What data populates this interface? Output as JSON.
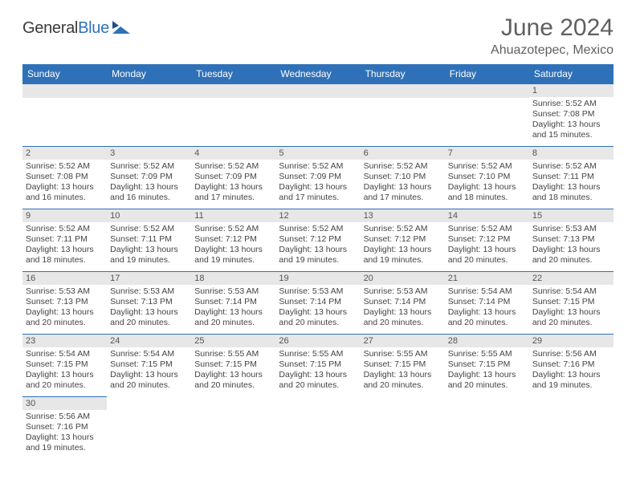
{
  "logo": {
    "word1": "General",
    "word2": "Blue"
  },
  "title": "June 2024",
  "location": "Ahuazotepec, Mexico",
  "colors": {
    "header_bg": "#2f71b8",
    "header_text": "#ffffff",
    "daynum_bg": "#e7e7e7",
    "border": "#2f71b8",
    "body_text": "#444444",
    "title_text": "#5f5f5f"
  },
  "day_headers": [
    "Sunday",
    "Monday",
    "Tuesday",
    "Wednesday",
    "Thursday",
    "Friday",
    "Saturday"
  ],
  "weeks": [
    [
      null,
      null,
      null,
      null,
      null,
      null,
      {
        "n": "1",
        "sr": "5:52 AM",
        "ss": "7:08 PM",
        "dl": "13 hours and 15 minutes."
      }
    ],
    [
      {
        "n": "2",
        "sr": "5:52 AM",
        "ss": "7:08 PM",
        "dl": "13 hours and 16 minutes."
      },
      {
        "n": "3",
        "sr": "5:52 AM",
        "ss": "7:09 PM",
        "dl": "13 hours and 16 minutes."
      },
      {
        "n": "4",
        "sr": "5:52 AM",
        "ss": "7:09 PM",
        "dl": "13 hours and 17 minutes."
      },
      {
        "n": "5",
        "sr": "5:52 AM",
        "ss": "7:09 PM",
        "dl": "13 hours and 17 minutes."
      },
      {
        "n": "6",
        "sr": "5:52 AM",
        "ss": "7:10 PM",
        "dl": "13 hours and 17 minutes."
      },
      {
        "n": "7",
        "sr": "5:52 AM",
        "ss": "7:10 PM",
        "dl": "13 hours and 18 minutes."
      },
      {
        "n": "8",
        "sr": "5:52 AM",
        "ss": "7:11 PM",
        "dl": "13 hours and 18 minutes."
      }
    ],
    [
      {
        "n": "9",
        "sr": "5:52 AM",
        "ss": "7:11 PM",
        "dl": "13 hours and 18 minutes."
      },
      {
        "n": "10",
        "sr": "5:52 AM",
        "ss": "7:11 PM",
        "dl": "13 hours and 19 minutes."
      },
      {
        "n": "11",
        "sr": "5:52 AM",
        "ss": "7:12 PM",
        "dl": "13 hours and 19 minutes."
      },
      {
        "n": "12",
        "sr": "5:52 AM",
        "ss": "7:12 PM",
        "dl": "13 hours and 19 minutes."
      },
      {
        "n": "13",
        "sr": "5:52 AM",
        "ss": "7:12 PM",
        "dl": "13 hours and 19 minutes."
      },
      {
        "n": "14",
        "sr": "5:52 AM",
        "ss": "7:12 PM",
        "dl": "13 hours and 20 minutes."
      },
      {
        "n": "15",
        "sr": "5:53 AM",
        "ss": "7:13 PM",
        "dl": "13 hours and 20 minutes."
      }
    ],
    [
      {
        "n": "16",
        "sr": "5:53 AM",
        "ss": "7:13 PM",
        "dl": "13 hours and 20 minutes."
      },
      {
        "n": "17",
        "sr": "5:53 AM",
        "ss": "7:13 PM",
        "dl": "13 hours and 20 minutes."
      },
      {
        "n": "18",
        "sr": "5:53 AM",
        "ss": "7:14 PM",
        "dl": "13 hours and 20 minutes."
      },
      {
        "n": "19",
        "sr": "5:53 AM",
        "ss": "7:14 PM",
        "dl": "13 hours and 20 minutes."
      },
      {
        "n": "20",
        "sr": "5:53 AM",
        "ss": "7:14 PM",
        "dl": "13 hours and 20 minutes."
      },
      {
        "n": "21",
        "sr": "5:54 AM",
        "ss": "7:14 PM",
        "dl": "13 hours and 20 minutes."
      },
      {
        "n": "22",
        "sr": "5:54 AM",
        "ss": "7:15 PM",
        "dl": "13 hours and 20 minutes."
      }
    ],
    [
      {
        "n": "23",
        "sr": "5:54 AM",
        "ss": "7:15 PM",
        "dl": "13 hours and 20 minutes."
      },
      {
        "n": "24",
        "sr": "5:54 AM",
        "ss": "7:15 PM",
        "dl": "13 hours and 20 minutes."
      },
      {
        "n": "25",
        "sr": "5:55 AM",
        "ss": "7:15 PM",
        "dl": "13 hours and 20 minutes."
      },
      {
        "n": "26",
        "sr": "5:55 AM",
        "ss": "7:15 PM",
        "dl": "13 hours and 20 minutes."
      },
      {
        "n": "27",
        "sr": "5:55 AM",
        "ss": "7:15 PM",
        "dl": "13 hours and 20 minutes."
      },
      {
        "n": "28",
        "sr": "5:55 AM",
        "ss": "7:15 PM",
        "dl": "13 hours and 20 minutes."
      },
      {
        "n": "29",
        "sr": "5:56 AM",
        "ss": "7:16 PM",
        "dl": "13 hours and 19 minutes."
      }
    ],
    [
      {
        "n": "30",
        "sr": "5:56 AM",
        "ss": "7:16 PM",
        "dl": "13 hours and 19 minutes."
      },
      null,
      null,
      null,
      null,
      null,
      null
    ]
  ],
  "labels": {
    "sunrise": "Sunrise:",
    "sunset": "Sunset:",
    "daylight": "Daylight:"
  }
}
